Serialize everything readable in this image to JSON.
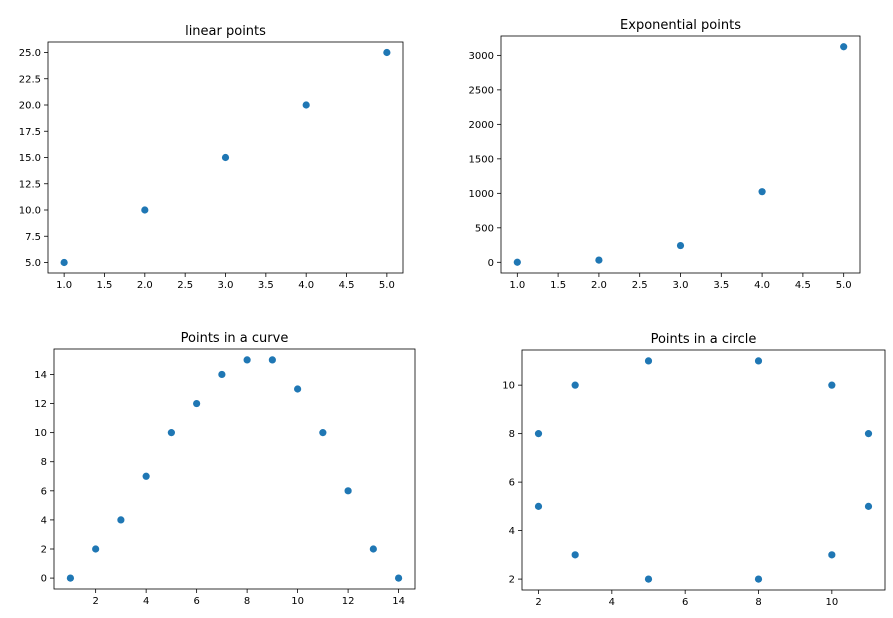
{
  "chart_data": [
    {
      "type": "scatter",
      "title": "linear points",
      "x": [
        1,
        2,
        3,
        4,
        5
      ],
      "y": [
        5,
        10,
        15,
        20,
        25
      ],
      "xlim": [
        0.8,
        5.2
      ],
      "ylim": [
        4.0,
        26.0
      ],
      "xticks": [
        "1.0",
        "1.5",
        "2.0",
        "2.5",
        "3.0",
        "3.5",
        "4.0",
        "4.5",
        "5.0"
      ],
      "xtick_values": [
        1.0,
        1.5,
        2.0,
        2.5,
        3.0,
        3.5,
        4.0,
        4.5,
        5.0
      ],
      "yticks": [
        "5.0",
        "7.5",
        "10.0",
        "12.5",
        "15.0",
        "17.5",
        "20.0",
        "22.5",
        "25.0"
      ],
      "ytick_values": [
        5.0,
        7.5,
        10.0,
        12.5,
        15.0,
        17.5,
        20.0,
        22.5,
        25.0
      ],
      "color": "#1f77b4",
      "grid": false
    },
    {
      "type": "scatter",
      "title": "Exponential points",
      "x": [
        1,
        2,
        3,
        4,
        5
      ],
      "y": [
        1,
        32,
        243,
        1024,
        3125
      ],
      "xlim": [
        0.8,
        5.2
      ],
      "ylim": [
        -155,
        3281
      ],
      "xticks": [
        "1.0",
        "1.5",
        "2.0",
        "2.5",
        "3.0",
        "3.5",
        "4.0",
        "4.5",
        "5.0"
      ],
      "xtick_values": [
        1.0,
        1.5,
        2.0,
        2.5,
        3.0,
        3.5,
        4.0,
        4.5,
        5.0
      ],
      "yticks": [
        "0",
        "500",
        "1000",
        "1500",
        "2000",
        "2500",
        "3000"
      ],
      "ytick_values": [
        0,
        500,
        1000,
        1500,
        2000,
        2500,
        3000
      ],
      "color": "#1f77b4",
      "grid": false
    },
    {
      "type": "scatter",
      "title": "Points in a curve",
      "x": [
        1,
        2,
        3,
        4,
        5,
        6,
        7,
        8,
        9,
        10,
        11,
        12,
        13,
        14
      ],
      "y": [
        0,
        2,
        4,
        7,
        10,
        12,
        14,
        15,
        15,
        13,
        10,
        6,
        2,
        0
      ],
      "xlim": [
        0.35,
        14.65
      ],
      "ylim": [
        -0.75,
        15.75
      ],
      "xticks": [
        "2",
        "4",
        "6",
        "8",
        "10",
        "12",
        "14"
      ],
      "xtick_values": [
        2,
        4,
        6,
        8,
        10,
        12,
        14
      ],
      "yticks": [
        "0",
        "2",
        "4",
        "6",
        "8",
        "10",
        "12",
        "14"
      ],
      "ytick_values": [
        0,
        2,
        4,
        6,
        8,
        10,
        12,
        14
      ],
      "color": "#1f77b4",
      "grid": false
    },
    {
      "type": "scatter",
      "title": "Points in a circle",
      "x": [
        2,
        2,
        3,
        3,
        5,
        5,
        8,
        8,
        10,
        10,
        11,
        11
      ],
      "y": [
        5,
        8,
        3,
        10,
        2,
        11,
        2,
        11,
        3,
        10,
        5,
        8
      ],
      "xlim": [
        1.55,
        11.45
      ],
      "ylim": [
        1.55,
        11.45
      ],
      "xticks": [
        "2",
        "4",
        "6",
        "8",
        "10"
      ],
      "xtick_values": [
        2,
        4,
        6,
        8,
        10
      ],
      "yticks": [
        "2",
        "4",
        "6",
        "8",
        "10"
      ],
      "ytick_values": [
        2,
        4,
        6,
        8,
        10
      ],
      "color": "#1f77b4",
      "grid": false
    }
  ]
}
